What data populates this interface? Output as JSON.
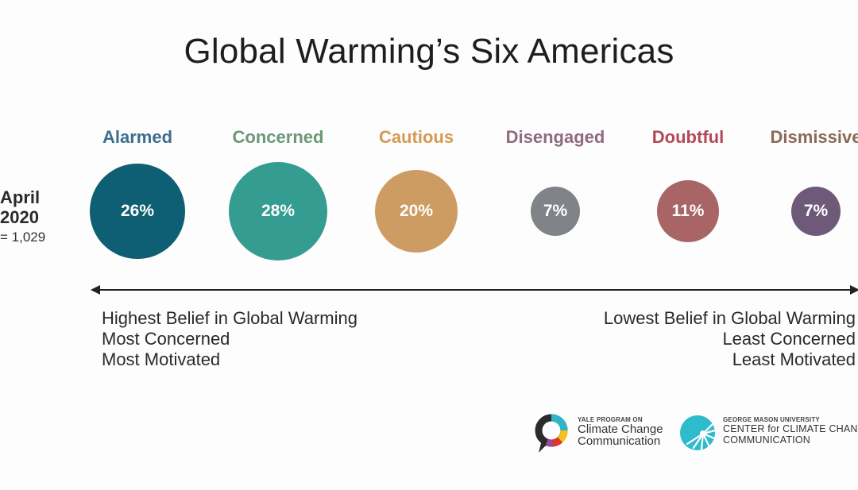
{
  "title": "Global Warming’s Six Americas",
  "survey": {
    "month": "April",
    "year": "2020",
    "n": "= 1,029"
  },
  "chart_data": {
    "type": "bubble",
    "title": "Global Warming’s Six Americas",
    "unit": "%",
    "categories": [
      "Alarmed",
      "Concerned",
      "Cautious",
      "Disengaged",
      "Doubtful",
      "Dismissive"
    ],
    "values": [
      26,
      28,
      20,
      7,
      11,
      7
    ],
    "labels": [
      "26%",
      "28%",
      "20%",
      "7%",
      "11%",
      "7%"
    ],
    "colors": [
      "#0e5f73",
      "#349c90",
      "#cc9c63",
      "#808488",
      "#a96466",
      "#6e5a78"
    ],
    "name_colors": [
      "#3d6e8e",
      "#6a9878",
      "#d39a52",
      "#8f6b7d",
      "#b5475a",
      "#8b6b55"
    ]
  },
  "axis": {
    "left_lines": [
      "Highest Belief in Global Warming",
      "Most Concerned",
      "Most Motivated"
    ],
    "right_lines": [
      "Lowest Belief in Global Warming",
      "Least Concerned",
      "Least Motivated"
    ]
  },
  "logos": {
    "yale": {
      "small": "YALE PROGRAM ON",
      "line1": "Climate Change",
      "line2": "Communication",
      "icon": "speech-bubble-ring-icon"
    },
    "gmu": {
      "small": "GEORGE MASON UNIVERSITY",
      "line1": "CENTER for CLIMATE CHANGE",
      "line2": "COMMUNICATION",
      "icon": "sunburst-circle-icon"
    }
  }
}
